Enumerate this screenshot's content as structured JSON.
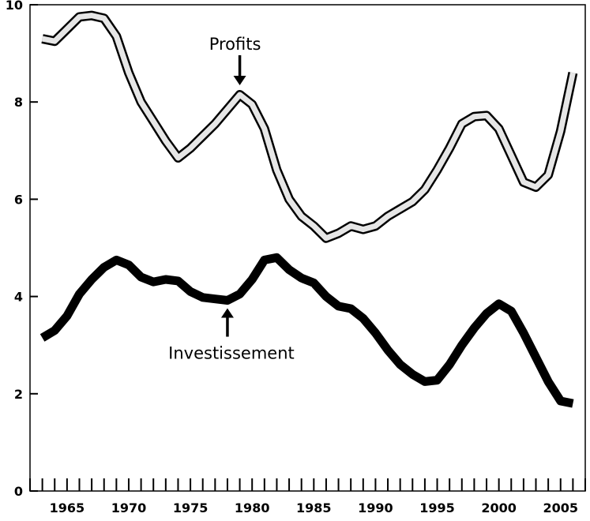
{
  "chart_data": {
    "type": "line",
    "title": "",
    "xlabel": "",
    "ylabel": "",
    "xlim": [
      1962,
      2007
    ],
    "ylim": [
      0,
      10
    ],
    "yticks": [
      0,
      2,
      4,
      6,
      8,
      10
    ],
    "xticks_labeled": [
      1965,
      1970,
      1975,
      1980,
      1985,
      1990,
      1995,
      2000,
      2005
    ],
    "xticks_minor_step": 1,
    "grid": false,
    "legend": "none",
    "series": [
      {
        "name": "Profits",
        "style": "hollow",
        "color": "#e6e6e6",
        "x": [
          1963,
          1964,
          1965,
          1966,
          1967,
          1968,
          1969,
          1970,
          1971,
          1972,
          1973,
          1974,
          1975,
          1976,
          1977,
          1978,
          1979,
          1980,
          1981,
          1982,
          1983,
          1984,
          1985,
          1986,
          1987,
          1988,
          1989,
          1990,
          1991,
          1992,
          1993,
          1994,
          1995,
          1996,
          1997,
          1998,
          1999,
          2000,
          2001,
          2002,
          2003,
          2004,
          2005,
          2006
        ],
        "y": [
          9.3,
          9.25,
          9.5,
          9.75,
          9.78,
          9.72,
          9.35,
          8.6,
          8.0,
          7.6,
          7.2,
          6.85,
          7.05,
          7.3,
          7.55,
          7.85,
          8.15,
          7.95,
          7.45,
          6.6,
          6.0,
          5.65,
          5.45,
          5.2,
          5.3,
          5.45,
          5.38,
          5.45,
          5.65,
          5.8,
          5.95,
          6.2,
          6.6,
          7.05,
          7.55,
          7.7,
          7.72,
          7.45,
          6.9,
          6.35,
          6.25,
          6.5,
          7.4,
          8.6
        ]
      },
      {
        "name": "Investissement",
        "style": "solid",
        "color": "#000000",
        "x": [
          1963,
          1964,
          1965,
          1966,
          1967,
          1968,
          1969,
          1970,
          1971,
          1972,
          1973,
          1974,
          1975,
          1976,
          1977,
          1978,
          1979,
          1980,
          1981,
          1982,
          1983,
          1984,
          1985,
          1986,
          1987,
          1988,
          1989,
          1990,
          1991,
          1992,
          1993,
          1994,
          1995,
          1996,
          1997,
          1998,
          1999,
          2000,
          2001,
          2002,
          2003,
          2004,
          2005,
          2006
        ],
        "y": [
          3.15,
          3.3,
          3.6,
          4.05,
          4.35,
          4.6,
          4.75,
          4.65,
          4.4,
          4.3,
          4.35,
          4.32,
          4.1,
          3.98,
          3.95,
          3.92,
          4.05,
          4.35,
          4.75,
          4.8,
          4.55,
          4.38,
          4.28,
          4.0,
          3.8,
          3.75,
          3.55,
          3.25,
          2.9,
          2.6,
          2.4,
          2.25,
          2.28,
          2.6,
          3.0,
          3.35,
          3.65,
          3.85,
          3.7,
          3.25,
          2.75,
          2.25,
          1.85,
          1.8
        ]
      }
    ],
    "annotations": [
      {
        "text": "Profits",
        "series": "Profits",
        "x": 1979,
        "y": 8.15,
        "arrow": "down"
      },
      {
        "text": "Investissement",
        "series": "Investissement",
        "x": 1978,
        "y": 3.92,
        "arrow": "up"
      }
    ]
  }
}
